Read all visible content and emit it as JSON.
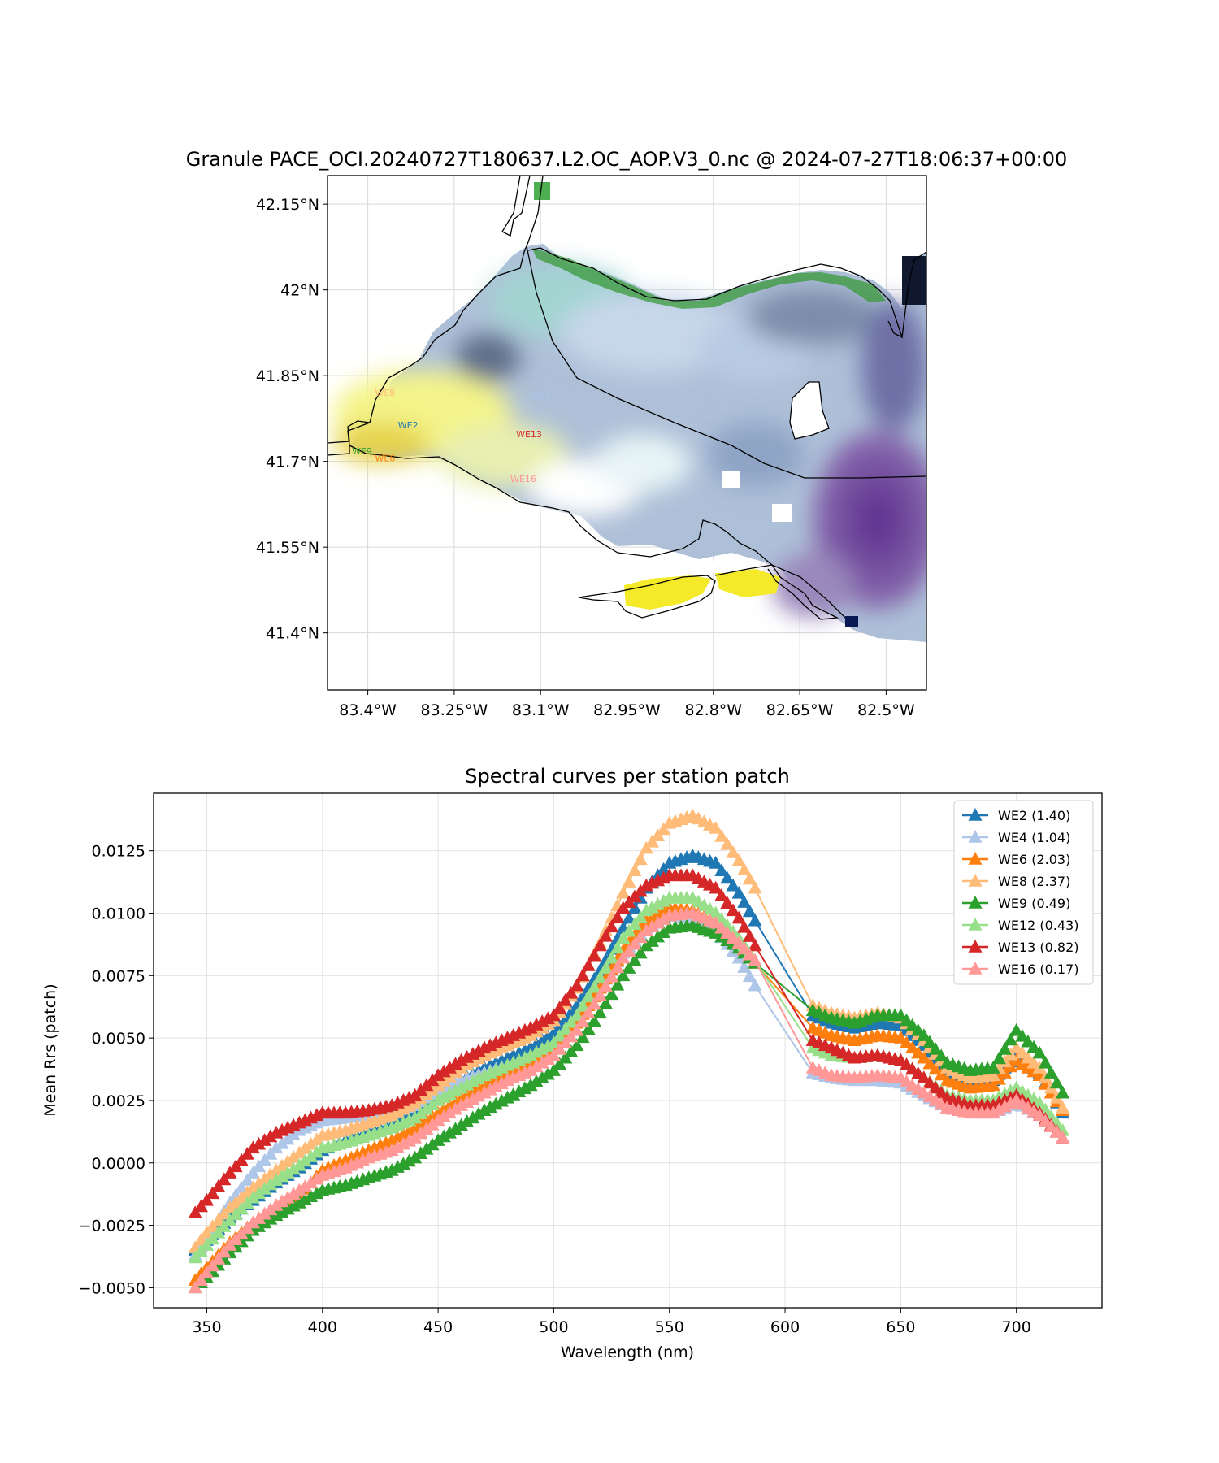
{
  "map": {
    "title": "Granule PACE_OCI.20240727T180637.L2.OC_AOP.V3_0.nc @ 2024-07-27T18:06:37+00:00",
    "lat_ticks": [
      {
        "value": 42.15,
        "label": "42.15°N"
      },
      {
        "value": 42.0,
        "label": "42°N"
      },
      {
        "value": 41.85,
        "label": "41.85°N"
      },
      {
        "value": 41.7,
        "label": "41.7°N"
      },
      {
        "value": 41.55,
        "label": "41.55°N"
      },
      {
        "value": 41.4,
        "label": "41.4°N"
      }
    ],
    "lon_ticks": [
      {
        "value": -83.4,
        "label": "83.4°W"
      },
      {
        "value": -83.25,
        "label": "83.25°W"
      },
      {
        "value": -83.1,
        "label": "83.1°W"
      },
      {
        "value": -82.95,
        "label": "82.95°W"
      },
      {
        "value": -82.8,
        "label": "82.8°W"
      },
      {
        "value": -82.65,
        "label": "82.65°W"
      },
      {
        "value": -82.5,
        "label": "82.5°W"
      }
    ],
    "lon_range": [
      -83.47,
      -82.43
    ],
    "lat_range": [
      41.3,
      42.2
    ],
    "stations": [
      {
        "name": "WE8",
        "lon": -83.37,
        "lat": 41.815,
        "color": "#ffbb78"
      },
      {
        "name": "WE4",
        "lon": -83.1,
        "lat": 41.81,
        "color": "#aec7e8"
      },
      {
        "name": "WE2",
        "lon": -83.33,
        "lat": 41.758,
        "color": "#1f77b4"
      },
      {
        "name": "WE13",
        "lon": -83.12,
        "lat": 41.742,
        "color": "#d62728"
      },
      {
        "name": "WE9",
        "lon": -83.41,
        "lat": 41.712,
        "color": "#2ca02c"
      },
      {
        "name": "WE6",
        "lon": -83.37,
        "lat": 41.7,
        "color": "#ff7f0e"
      },
      {
        "name": "WE16",
        "lon": -83.13,
        "lat": 41.664,
        "color": "#ff9896"
      }
    ]
  },
  "chart_data": {
    "type": "line",
    "title": "Spectral curves per station patch",
    "xlabel": "Wavelength (nm)",
    "ylabel": "Mean Rrs (patch)",
    "xlim": [
      327,
      737
    ],
    "ylim": [
      -0.0058,
      0.0148
    ],
    "x_ticks": [
      350,
      400,
      450,
      500,
      550,
      600,
      650,
      700
    ],
    "y_ticks": [
      {
        "value": -0.005,
        "label": "−0.0050"
      },
      {
        "value": -0.0025,
        "label": "−0.0025"
      },
      {
        "value": 0.0,
        "label": "0.0000"
      },
      {
        "value": 0.0025,
        "label": "0.0025"
      },
      {
        "value": 0.005,
        "label": "0.0050"
      },
      {
        "value": 0.0075,
        "label": "0.0075"
      },
      {
        "value": 0.01,
        "label": "0.0100"
      },
      {
        "value": 0.0125,
        "label": "0.0125"
      }
    ],
    "grid": true,
    "legend_position": "top-right",
    "marker": "triangle-up",
    "x": [
      345,
      350,
      360,
      370,
      380,
      390,
      400,
      410,
      420,
      430,
      440,
      450,
      460,
      470,
      480,
      490,
      500,
      510,
      520,
      530,
      540,
      550,
      560,
      570,
      580,
      587,
      612,
      620,
      630,
      640,
      650,
      660,
      670,
      680,
      690,
      700,
      710,
      720
    ],
    "series": [
      {
        "name": "WE2 (1.40)",
        "color": "#1f77b4",
        "values": [
          -0.0035,
          -0.0031,
          -0.0022,
          -0.0015,
          -0.0008,
          -0.0002,
          0.0005,
          0.0009,
          0.0012,
          0.0015,
          0.002,
          0.0027,
          0.0033,
          0.0038,
          0.0042,
          0.0046,
          0.0052,
          0.0063,
          0.0077,
          0.0094,
          0.011,
          0.012,
          0.0123,
          0.012,
          0.0108,
          0.0097,
          0.0059,
          0.0056,
          0.0054,
          0.0056,
          0.0055,
          0.0047,
          0.0036,
          0.0032,
          0.0033,
          0.0043,
          0.0036,
          0.002
        ]
      },
      {
        "name": "WE4 (1.04)",
        "color": "#aec7e8",
        "values": [
          -0.0037,
          -0.003,
          -0.0016,
          -0.0004,
          0.0006,
          0.0013,
          0.0017,
          0.0018,
          0.0019,
          0.002,
          0.0023,
          0.0029,
          0.0033,
          0.0036,
          0.0039,
          0.0042,
          0.0047,
          0.0057,
          0.007,
          0.0084,
          0.0094,
          0.0099,
          0.0098,
          0.0093,
          0.0082,
          0.0071,
          0.0036,
          0.0034,
          0.0033,
          0.0033,
          0.0032,
          0.0027,
          0.0022,
          0.0021,
          0.002,
          0.0024,
          0.0019,
          0.001
        ]
      },
      {
        "name": "WE6 (2.03)",
        "color": "#ff7f0e",
        "values": [
          -0.0047,
          -0.0042,
          -0.0032,
          -0.0024,
          -0.0018,
          -0.0013,
          -0.0003,
          0.0001,
          0.0005,
          0.0009,
          0.0014,
          0.002,
          0.0026,
          0.0031,
          0.0036,
          0.004,
          0.0046,
          0.0056,
          0.007,
          0.0085,
          0.0097,
          0.0102,
          0.0101,
          0.0096,
          0.0088,
          0.008,
          0.0054,
          0.0051,
          0.0049,
          0.0051,
          0.005,
          0.0042,
          0.0033,
          0.003,
          0.0031,
          0.0041,
          0.0035,
          0.0021
        ]
      },
      {
        "name": "WE8 (2.37)",
        "color": "#ffbb78",
        "values": [
          -0.0034,
          -0.0028,
          -0.0018,
          -0.001,
          -0.0003,
          0.0004,
          0.0011,
          0.0013,
          0.0016,
          0.0019,
          0.0024,
          0.0031,
          0.0038,
          0.0043,
          0.0047,
          0.0051,
          0.0057,
          0.007,
          0.0088,
          0.0108,
          0.0126,
          0.0136,
          0.0139,
          0.0134,
          0.0121,
          0.011,
          0.0063,
          0.006,
          0.0058,
          0.006,
          0.0058,
          0.0049,
          0.0038,
          0.0034,
          0.0035,
          0.0046,
          0.0038,
          0.0022
        ]
      },
      {
        "name": "WE9 (0.49)",
        "color": "#2ca02c",
        "values": [
          -0.005,
          -0.0046,
          -0.0036,
          -0.0027,
          -0.0021,
          -0.0016,
          -0.0011,
          -0.0009,
          -0.0006,
          -0.0003,
          0.0002,
          0.0009,
          0.0015,
          0.0021,
          0.0026,
          0.0031,
          0.0037,
          0.0047,
          0.006,
          0.0075,
          0.0087,
          0.0094,
          0.0095,
          0.0092,
          0.0086,
          0.008,
          0.0061,
          0.0058,
          0.0056,
          0.0059,
          0.0059,
          0.0051,
          0.004,
          0.0037,
          0.0038,
          0.0053,
          0.0044,
          0.0028
        ]
      },
      {
        "name": "WE12 (0.43)",
        "color": "#98df8a",
        "values": [
          -0.0038,
          -0.0033,
          -0.0023,
          -0.0014,
          -0.0007,
          -0.0001,
          0.0006,
          0.0008,
          0.0011,
          0.0014,
          0.0018,
          0.0025,
          0.003,
          0.0035,
          0.0039,
          0.0043,
          0.0048,
          0.0059,
          0.0074,
          0.009,
          0.0101,
          0.0106,
          0.0106,
          0.01,
          0.009,
          0.0081,
          0.0046,
          0.0043,
          0.0042,
          0.0043,
          0.0041,
          0.0034,
          0.0027,
          0.0025,
          0.0025,
          0.003,
          0.0024,
          0.0013
        ]
      },
      {
        "name": "WE13 (0.82)",
        "color": "#d62728",
        "values": [
          -0.002,
          -0.0015,
          -0.0004,
          0.0006,
          0.0012,
          0.0016,
          0.002,
          0.002,
          0.0021,
          0.0023,
          0.0027,
          0.0035,
          0.0041,
          0.0046,
          0.005,
          0.0054,
          0.0059,
          0.0071,
          0.0087,
          0.0102,
          0.0111,
          0.0115,
          0.0115,
          0.011,
          0.0098,
          0.0087,
          0.0049,
          0.0046,
          0.0042,
          0.0043,
          0.0041,
          0.0034,
          0.0026,
          0.0023,
          0.0023,
          0.0027,
          0.002,
          0.001
        ]
      },
      {
        "name": "WE16 (0.17)",
        "color": "#ff9896",
        "values": [
          -0.005,
          -0.0044,
          -0.0033,
          -0.0024,
          -0.0017,
          -0.0011,
          -0.0005,
          -0.0002,
          0.0002,
          0.0005,
          0.001,
          0.0017,
          0.0023,
          0.0028,
          0.0033,
          0.0037,
          0.0043,
          0.0053,
          0.0067,
          0.0082,
          0.0093,
          0.0099,
          0.01,
          0.0096,
          0.0088,
          0.0081,
          0.0038,
          0.0035,
          0.0034,
          0.0035,
          0.0034,
          0.0028,
          0.0022,
          0.002,
          0.002,
          0.0025,
          0.0019,
          0.001
        ]
      }
    ]
  }
}
